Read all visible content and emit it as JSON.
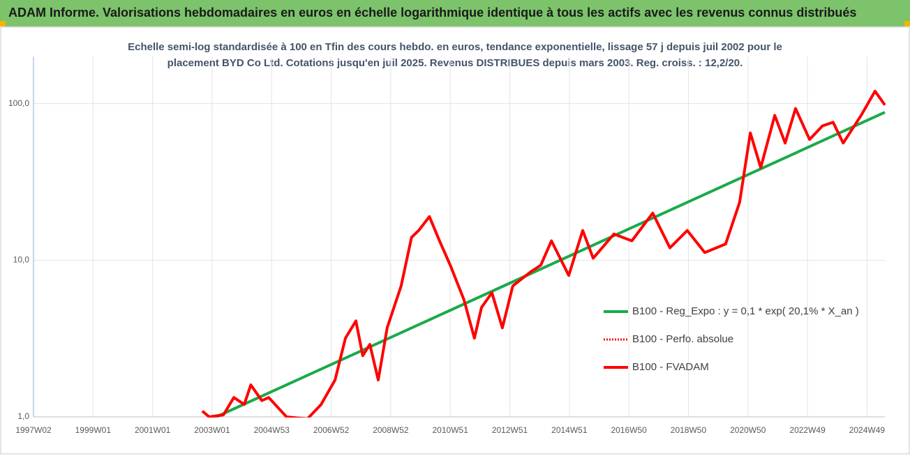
{
  "chart_data": {
    "type": "line",
    "title": "ADAM Informe. Valorisations hebdomadaires en euros en échelle logarithmique identique à tous les actifs avec les revenus connus distribués",
    "subtitle": [
      "Echelle semi-log standardisée à 100 en Tfin des cours hebdo. en euros, tendance exponentielle, lissage 57 j depuis juil 2002 pour le",
      "placement BYD Co Ltd. Cotations jusqu'en juil 2025. Revenus DISTRIBUES depuis mars 2003. Reg. croiss. : 12,2/20."
    ],
    "log_y": true,
    "grid": true,
    "legend": "lower right",
    "xlim": [
      1997.0,
      2025.6
    ],
    "xticks": [
      {
        "value": 1997.0,
        "label": "1997W02"
      },
      {
        "value": 1999.0,
        "label": "1999W01"
      },
      {
        "value": 2001.0,
        "label": "2001W01"
      },
      {
        "value": 2003.0,
        "label": "2003W01"
      },
      {
        "value": 2005.0,
        "label": "2004W53"
      },
      {
        "value": 2007.0,
        "label": "2006W52"
      },
      {
        "value": 2009.0,
        "label": "2008W52"
      },
      {
        "value": 2011.0,
        "label": "2010W51"
      },
      {
        "value": 2013.0,
        "label": "2012W51"
      },
      {
        "value": 2015.0,
        "label": "2014W51"
      },
      {
        "value": 2017.0,
        "label": "2016W50"
      },
      {
        "value": 2019.0,
        "label": "2018W50"
      },
      {
        "value": 2021.0,
        "label": "2020W50"
      },
      {
        "value": 2023.0,
        "label": "2022W49"
      },
      {
        "value": 2025.0,
        "label": "2024W49"
      }
    ],
    "ylim": [
      1,
      200
    ],
    "yticks": [
      {
        "value": 1,
        "label": "1,0"
      },
      {
        "value": 10,
        "label": "10,0"
      },
      {
        "value": 100,
        "label": "100,0"
      }
    ],
    "series": [
      {
        "name": "B100 - Reg_Expo : y = 0,1 * exp( 20,1% *  X_an )",
        "color": "#1aaa4a",
        "style": "solid",
        "x": [
          2003.14,
          2025.6
        ],
        "values": [
          1.0,
          88
        ]
      },
      {
        "name": "B100 - Perfo. absolue",
        "color": "#ff0000",
        "style": "dotted",
        "x": [
          2002.67,
          2002.9,
          2003.38,
          2003.73,
          2004.08,
          2004.3,
          2004.67,
          2004.9,
          2005.5,
          2006.2,
          2006.66,
          2007.13,
          2007.48,
          2007.83,
          2008.06,
          2008.3,
          2008.58,
          2008.88,
          2009.35,
          2009.7,
          2009.94,
          2010.3,
          2010.64,
          2011.0,
          2011.46,
          2011.81,
          2012.05,
          2012.4,
          2012.75,
          2013.1,
          2013.69,
          2014.04,
          2014.4,
          2014.98,
          2015.45,
          2015.8,
          2016.5,
          2017.1,
          2017.8,
          2018.38,
          2018.96,
          2019.55,
          2020.25,
          2020.72,
          2021.08,
          2021.43,
          2021.9,
          2022.25,
          2022.6,
          2023.07,
          2023.5,
          2023.86,
          2024.2,
          2024.8,
          2025.27,
          2025.6
        ],
        "values": [
          1.09,
          1.0,
          1.03,
          1.33,
          1.2,
          1.6,
          1.27,
          1.33,
          1.0,
          0.97,
          1.2,
          1.72,
          3.18,
          4.1,
          2.46,
          2.9,
          1.72,
          3.7,
          6.85,
          14,
          15.5,
          19,
          13.3,
          9.3,
          5.6,
          3.18,
          5.0,
          6.2,
          3.7,
          6.85,
          8.4,
          9.3,
          13.3,
          8,
          15.5,
          10.3,
          14.7,
          13.3,
          20,
          12,
          15.5,
          11.2,
          12.7,
          23.4,
          65,
          39,
          84,
          56,
          93,
          59,
          72,
          76,
          56,
          84,
          120,
          98
        ]
      },
      {
        "name": "B100 - FVADAM",
        "color": "#ff0000",
        "style": "solid",
        "x": [
          2002.67,
          2002.9,
          2003.38,
          2003.73,
          2004.08,
          2004.3,
          2004.67,
          2004.9,
          2005.5,
          2006.2,
          2006.66,
          2007.13,
          2007.48,
          2007.83,
          2008.06,
          2008.3,
          2008.58,
          2008.88,
          2009.35,
          2009.7,
          2009.94,
          2010.3,
          2010.64,
          2011.0,
          2011.46,
          2011.81,
          2012.05,
          2012.4,
          2012.75,
          2013.1,
          2013.69,
          2014.04,
          2014.4,
          2014.98,
          2015.45,
          2015.8,
          2016.5,
          2017.1,
          2017.8,
          2018.38,
          2018.96,
          2019.55,
          2020.25,
          2020.72,
          2021.08,
          2021.43,
          2021.9,
          2022.25,
          2022.6,
          2023.07,
          2023.5,
          2023.86,
          2024.2,
          2024.8,
          2025.27,
          2025.6
        ],
        "values": [
          1.09,
          1.0,
          1.03,
          1.33,
          1.2,
          1.6,
          1.27,
          1.33,
          1.0,
          0.97,
          1.2,
          1.72,
          3.18,
          4.1,
          2.46,
          2.9,
          1.72,
          3.7,
          6.85,
          14,
          15.5,
          19,
          13.3,
          9.3,
          5.6,
          3.18,
          5.0,
          6.2,
          3.7,
          6.85,
          8.4,
          9.3,
          13.3,
          8,
          15.5,
          10.3,
          14.7,
          13.3,
          20,
          12,
          15.5,
          11.2,
          12.7,
          23.4,
          65,
          39,
          84,
          56,
          93,
          59,
          72,
          76,
          56,
          84,
          120,
          98
        ]
      }
    ]
  }
}
